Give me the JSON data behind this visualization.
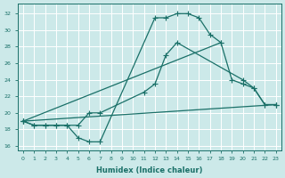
{
  "xlabel": "Humidex (Indice chaleur)",
  "background_color": "#cce9e9",
  "grid_color": "#ffffff",
  "line_color": "#1a7068",
  "xlim": [
    -0.5,
    23.5
  ],
  "ylim": [
    15.5,
    33.2
  ],
  "xticks": [
    0,
    1,
    2,
    3,
    4,
    5,
    6,
    7,
    8,
    9,
    10,
    11,
    12,
    13,
    14,
    15,
    16,
    17,
    18,
    19,
    20,
    21,
    22,
    23
  ],
  "yticks": [
    16,
    18,
    20,
    22,
    24,
    26,
    28,
    30,
    32
  ],
  "line1_x": [
    0,
    1,
    2,
    3,
    4,
    5,
    6,
    7,
    12,
    13,
    14,
    15,
    16,
    17,
    18
  ],
  "line1_y": [
    19,
    18.5,
    18.5,
    18.5,
    18.5,
    17,
    16.5,
    16.5,
    31.5,
    31.5,
    32,
    32,
    31.5,
    29.5,
    28.5
  ],
  "line2_x": [
    0,
    1,
    2,
    3,
    4,
    5,
    6,
    7,
    11,
    12,
    13,
    14,
    20,
    21,
    22,
    23
  ],
  "line2_y": [
    19,
    18.5,
    18.5,
    18.5,
    18.5,
    18.5,
    20,
    20,
    22.5,
    23.5,
    27,
    28.5,
    24,
    23,
    21,
    21
  ],
  "line3_x": [
    0,
    18,
    19,
    20,
    21,
    22,
    23
  ],
  "line3_y": [
    19,
    28.5,
    24,
    23.5,
    23,
    21,
    21
  ],
  "line4_x": [
    0,
    23
  ],
  "line4_y": [
    19,
    21
  ]
}
